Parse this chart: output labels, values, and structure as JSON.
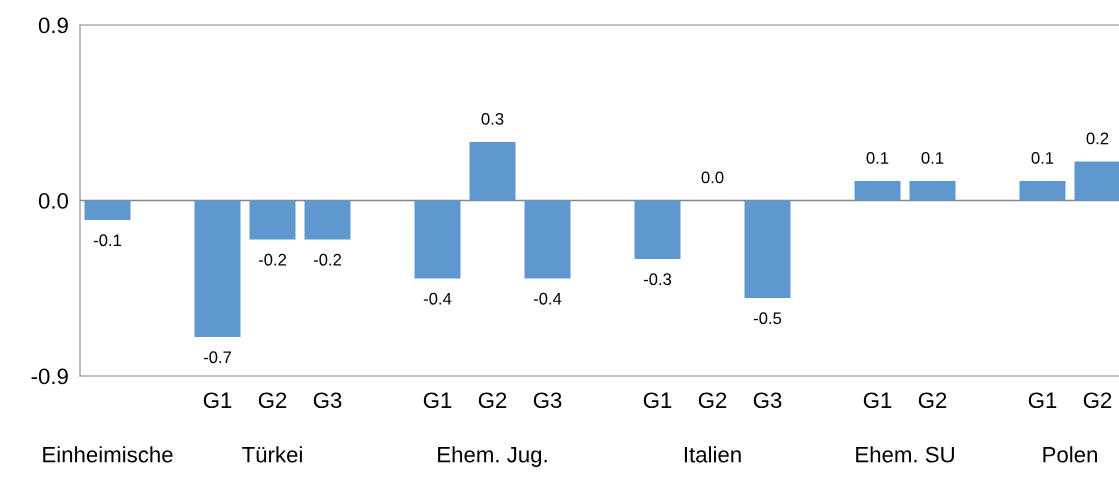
{
  "chart_data": {
    "type": "bar",
    "categories": [
      null,
      null,
      "G1",
      "G2",
      "G3",
      null,
      "G1",
      "G2",
      "G3",
      null,
      "G1",
      "G2",
      "G3",
      null,
      "G1",
      "G2",
      null,
      "G1",
      "G2"
    ],
    "values": [
      -0.1,
      null,
      -0.7,
      -0.2,
      -0.2,
      null,
      -0.4,
      0.3,
      -0.4,
      null,
      -0.3,
      0.0,
      -0.5,
      null,
      0.1,
      0.1,
      null,
      0.1,
      0.2
    ],
    "color": "#5f97cf",
    "ylim": [
      -0.9,
      0.9
    ],
    "yticks": [
      -0.9,
      {
        "value": 0,
        "label": "0.0"
      },
      0.9
    ],
    "ref_lines": [
      {
        "axis": "y",
        "value": 0,
        "color": "#868686"
      }
    ],
    "annotations": [
      "Einheimische",
      "Türkei",
      "Ehem. Jug.",
      "Italien",
      "Ehem. SU",
      "Polen"
    ],
    "value_labels": [
      "-0.1",
      null,
      "-0.7",
      "-0.2",
      "-0.2",
      null,
      "-0.4",
      "0.3",
      "-0.4",
      null,
      "-0.3",
      "0.0",
      "-0.5",
      null,
      "0.1",
      "0.1",
      null,
      "0.1",
      "0.2"
    ],
    "grid": false
  }
}
